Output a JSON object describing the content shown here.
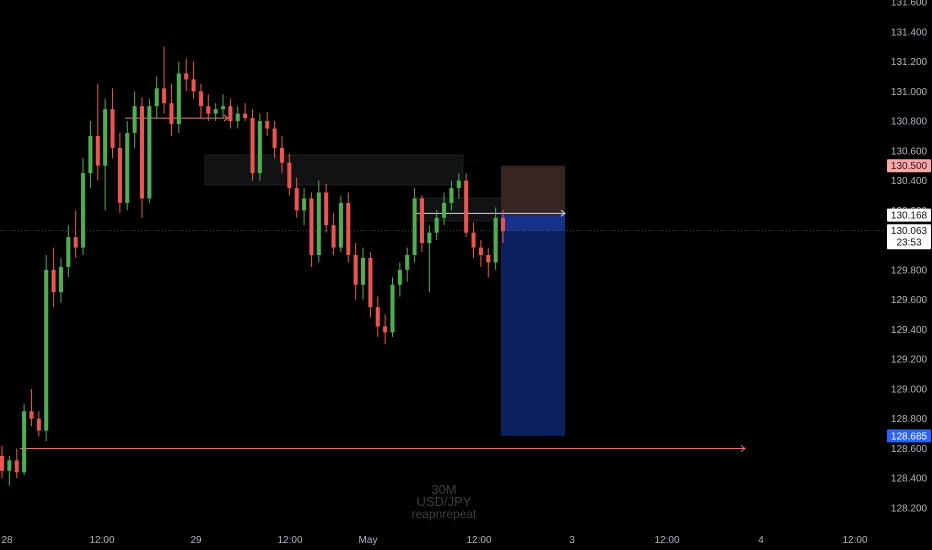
{
  "chart_data": {
    "type": "candlestick",
    "symbol": "USD/JPY",
    "interval": "30M",
    "author": "reapnrepeat",
    "x_axis": {
      "ticks": [
        "28",
        "12:00",
        "29",
        "12:00",
        "May",
        "12:00",
        "3",
        "12:00",
        "4",
        "12:00"
      ]
    },
    "y_axis": {
      "ylim": [
        128.1,
        131.65
      ],
      "ticks": [
        "128.200",
        "128.400",
        "128.600",
        "128.800",
        "129.000",
        "129.200",
        "129.400",
        "129.600",
        "129.800",
        "130.000",
        "130.200",
        "130.400",
        "130.600",
        "130.800",
        "131.000",
        "131.200",
        "131.400",
        "131.600"
      ]
    },
    "price_tags": {
      "stop": "130.500",
      "entry": "130.168",
      "last": "130.063",
      "countdown": "23:53",
      "target": "128.685"
    },
    "position": {
      "side": "short",
      "entry": 130.168,
      "stop": 130.5,
      "target": 128.685
    },
    "levels": [
      128.6,
      130.82,
      130.18
    ],
    "candles": [
      [
        128.55,
        128.62,
        128.4,
        128.45
      ],
      [
        128.45,
        128.55,
        128.35,
        128.52
      ],
      [
        128.52,
        128.6,
        128.4,
        128.44
      ],
      [
        128.44,
        128.9,
        128.42,
        128.85
      ],
      [
        128.85,
        129.0,
        128.75,
        128.8
      ],
      [
        128.8,
        128.85,
        128.68,
        128.72
      ],
      [
        128.72,
        129.9,
        128.65,
        129.8
      ],
      [
        129.8,
        129.95,
        129.55,
        129.65
      ],
      [
        129.65,
        129.88,
        129.58,
        129.82
      ],
      [
        129.82,
        130.1,
        129.75,
        130.02
      ],
      [
        130.02,
        130.2,
        129.88,
        129.95
      ],
      [
        129.95,
        130.55,
        129.9,
        130.45
      ],
      [
        130.45,
        130.8,
        130.35,
        130.7
      ],
      [
        130.7,
        131.05,
        130.4,
        130.5
      ],
      [
        130.5,
        130.95,
        130.2,
        130.88
      ],
      [
        130.88,
        131.02,
        130.55,
        130.62
      ],
      [
        130.62,
        130.72,
        130.18,
        130.25
      ],
      [
        130.25,
        130.8,
        130.2,
        130.72
      ],
      [
        130.72,
        131.0,
        130.62,
        130.9
      ],
      [
        130.9,
        130.96,
        130.15,
        130.28
      ],
      [
        130.28,
        130.95,
        130.25,
        130.9
      ],
      [
        130.9,
        131.1,
        130.82,
        131.02
      ],
      [
        131.02,
        131.3,
        130.85,
        130.92
      ],
      [
        130.92,
        131.05,
        130.7,
        130.78
      ],
      [
        130.78,
        131.2,
        130.72,
        131.12
      ],
      [
        131.12,
        131.22,
        131.0,
        131.08
      ],
      [
        131.08,
        131.2,
        130.95,
        131.0
      ],
      [
        131.0,
        131.05,
        130.82,
        130.9
      ],
      [
        130.9,
        130.98,
        130.8,
        130.85
      ],
      [
        130.85,
        130.92,
        130.8,
        130.88
      ],
      [
        130.88,
        130.98,
        130.82,
        130.9
      ],
      [
        130.9,
        130.95,
        130.75,
        130.8
      ],
      [
        130.8,
        130.9,
        130.75,
        130.85
      ],
      [
        130.85,
        130.92,
        130.8,
        130.82
      ],
      [
        130.82,
        130.88,
        130.4,
        130.45
      ],
      [
        130.45,
        130.85,
        130.4,
        130.8
      ],
      [
        130.8,
        130.86,
        130.7,
        130.75
      ],
      [
        130.75,
        130.8,
        130.55,
        130.62
      ],
      [
        130.62,
        130.7,
        130.45,
        130.52
      ],
      [
        130.52,
        130.58,
        130.3,
        130.35
      ],
      [
        130.35,
        130.42,
        130.15,
        130.2
      ],
      [
        130.2,
        130.35,
        130.1,
        130.28
      ],
      [
        130.28,
        130.32,
        129.82,
        129.9
      ],
      [
        129.9,
        130.4,
        129.85,
        130.32
      ],
      [
        130.32,
        130.38,
        130.05,
        130.1
      ],
      [
        130.1,
        130.18,
        129.9,
        129.95
      ],
      [
        129.95,
        130.3,
        129.92,
        130.25
      ],
      [
        130.25,
        130.32,
        129.85,
        129.9
      ],
      [
        129.9,
        129.98,
        129.6,
        129.7
      ],
      [
        129.7,
        129.95,
        129.6,
        129.88
      ],
      [
        129.88,
        129.92,
        129.48,
        129.55
      ],
      [
        129.55,
        129.62,
        129.35,
        129.42
      ],
      [
        129.42,
        129.5,
        129.3,
        129.38
      ],
      [
        129.38,
        129.75,
        129.35,
        129.7
      ],
      [
        129.7,
        129.85,
        129.62,
        129.8
      ],
      [
        129.8,
        129.95,
        129.72,
        129.9
      ],
      [
        129.9,
        130.35,
        129.85,
        130.28
      ],
      [
        130.28,
        130.3,
        129.92,
        129.98
      ],
      [
        129.98,
        130.1,
        129.65,
        130.05
      ],
      [
        130.05,
        130.2,
        130.0,
        130.15
      ],
      [
        130.15,
        130.32,
        130.1,
        130.25
      ],
      [
        130.25,
        130.4,
        130.2,
        130.35
      ],
      [
        130.35,
        130.45,
        130.28,
        130.4
      ],
      [
        130.4,
        130.45,
        130.02,
        130.05
      ],
      [
        130.05,
        130.12,
        129.88,
        129.95
      ],
      [
        129.95,
        130.0,
        129.82,
        129.9
      ],
      [
        129.9,
        129.95,
        129.75,
        129.85
      ],
      [
        129.85,
        130.22,
        129.8,
        130.15
      ],
      [
        130.15,
        130.2,
        129.98,
        130.06
      ]
    ]
  }
}
